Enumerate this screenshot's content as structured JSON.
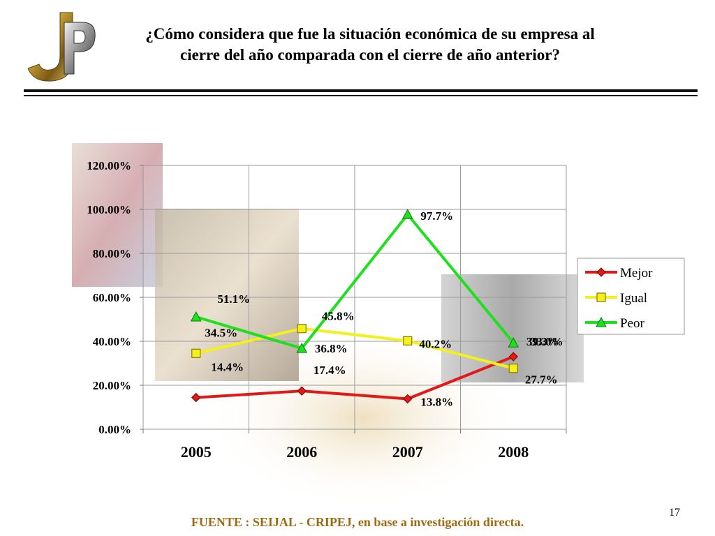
{
  "slide": {
    "title_line1": "¿Cómo considera que fue la situación económica de su empresa al",
    "title_line2": "cierre del año comparada con el cierre de año anterior?",
    "footer": "FUENTE :  SEIJAL - CRIPEJ,  en base a investigación directa.",
    "slide_number": "17"
  },
  "chart_data": {
    "type": "line",
    "categories": [
      "2005",
      "2006",
      "2007",
      "2008"
    ],
    "series": [
      {
        "name": "Mejor",
        "color": "#e11919",
        "marker": "diamond",
        "values": [
          14.4,
          17.4,
          13.8,
          33.0
        ],
        "labels": [
          "14.4%",
          "17.4%",
          "13.8%",
          "33.0%"
        ]
      },
      {
        "name": "Igual",
        "color": "#f4f01c",
        "marker": "square",
        "values": [
          34.5,
          45.8,
          40.2,
          27.7
        ],
        "labels": [
          "34.5%",
          "45.8%",
          "40.2%",
          "27.7%"
        ]
      },
      {
        "name": "Peor",
        "color": "#1fe01f",
        "marker": "triangle",
        "values": [
          51.1,
          36.8,
          97.7,
          39.3
        ],
        "labels": [
          "51.1%",
          "36.8%",
          "97.7%",
          "39.3%"
        ]
      }
    ],
    "y_ticks": [
      "0.00%",
      "20.00%",
      "40.00%",
      "60.00%",
      "80.00%",
      "100.00%",
      "120.00%"
    ],
    "ylim": [
      0,
      120
    ],
    "grid": true,
    "legend_position": "right"
  }
}
